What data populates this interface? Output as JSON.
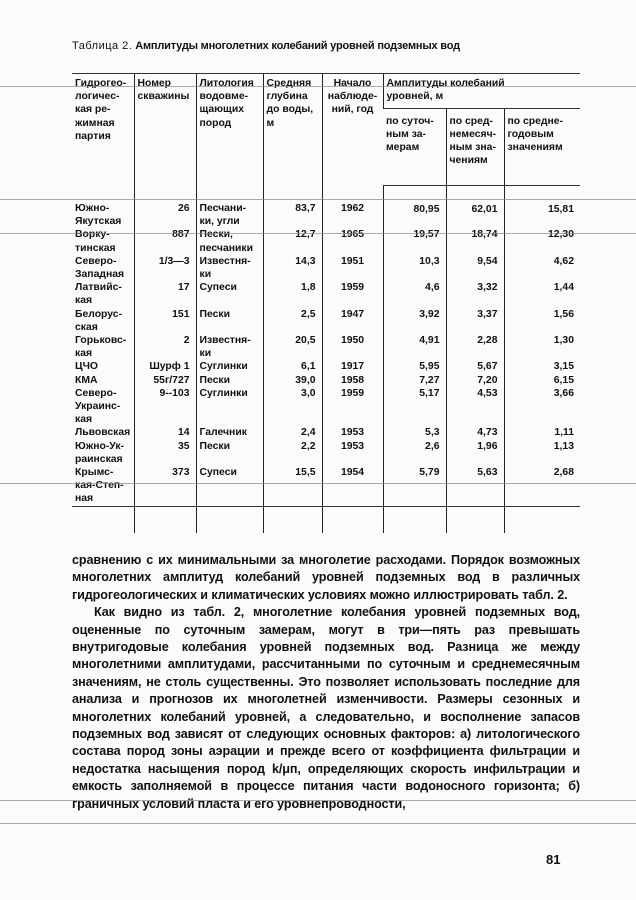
{
  "title": {
    "label": "Таблица 2.",
    "text": "Амплитуды многолетних колебаний уровней подземных вод"
  },
  "table": {
    "headers": {
      "region": "Гидрогео-\nлогичес-\nкая ре-\nжимная\nпартия",
      "well": "Номер\nскважины",
      "lithology": "Литология\nводовме-\nщающих\nпород",
      "depth": "Средняя\nглубина\nдо воды,\n м",
      "start": "Начало\nнаблюде-\nний, год",
      "amplitudes": "Амплитуды колебаний\nуровней, м",
      "daily": "по суточ-\nным за-\nмерам",
      "monthly": "по сред-\nнемесяч-\nным зна-\nчениям",
      "annual": "по средне-\nгодовым\nзначениям"
    },
    "rows": [
      {
        "region": "Южно-\nЯкутская",
        "well": "26",
        "lithology": "Песчани-\nки, угли",
        "depth": "83,7",
        "start": "1962",
        "daily": "80,95",
        "monthly": "62,01",
        "annual": "15,81"
      },
      {
        "region": "Ворку-\nтинская",
        "well": "887",
        "lithology": "Пески,\nпесчаники",
        "depth": "12,7",
        "start": "1965",
        "daily": "19,57",
        "monthly": "18,74",
        "annual": "12,30"
      },
      {
        "region": "Северо-\nЗападная",
        "well": "1/3—3",
        "lithology": "Известня-\nки",
        "depth": "14,3",
        "start": "1951",
        "daily": "10,3",
        "monthly": "9,54",
        "annual": "4,62"
      },
      {
        "region": "Латвийс-\nкая",
        "well": "17",
        "lithology": "Супеси",
        "depth": "1,8",
        "start": "1959",
        "daily": "4,6",
        "monthly": "3,32",
        "annual": "1,44"
      },
      {
        "region": "Белорус-\nская",
        "well": "151",
        "lithology": "Пески",
        "depth": "2,5",
        "start": "1947",
        "daily": "3,92",
        "monthly": "3,37",
        "annual": "1,56"
      },
      {
        "region": "Горьковс-\nкая",
        "well": "2",
        "lithology": "Известня-\nки",
        "depth": "20,5",
        "start": "1950",
        "daily": "4,91",
        "monthly": "2,28",
        "annual": "1,30"
      },
      {
        "region": "ЦЧО",
        "well": "Шурф 1",
        "lithology": "Суглинки",
        "depth": "6,1",
        "start": "1917",
        "daily": "5,95",
        "monthly": "5,67",
        "annual": "3,15"
      },
      {
        "region": "КМА",
        "well": "55г/727",
        "lithology": "Пески",
        "depth": "39,0",
        "start": "1958",
        "daily": "7,27",
        "monthly": "7,20",
        "annual": "6,15"
      },
      {
        "region": "Северо-\nУкраинс-\nкая",
        "well": "9--103",
        "lithology": "Суглинки",
        "depth": "3,0",
        "start": "1959",
        "daily": "5,17",
        "monthly": "4,53",
        "annual": "3,66"
      },
      {
        "region": "Львовская",
        "well": "14",
        "lithology": "Галечник",
        "depth": "2,4",
        "start": "1953",
        "daily": "5,3",
        "monthly": "4,73",
        "annual": "1,11"
      },
      {
        "region": "Южно-Ук-\nраинская",
        "well": "35",
        "lithology": "Пески",
        "depth": "2,2",
        "start": "1953",
        "daily": "2,6",
        "monthly": "1,96",
        "annual": "1,13"
      },
      {
        "region": "Крымс-\nкая-Степ-\nная",
        "well": "373",
        "lithology": "Супеси",
        "depth": "15,5",
        "start": "1954",
        "daily": "5,79",
        "monthly": "5,63",
        "annual": "2,68"
      }
    ]
  },
  "body": {
    "p1": "сравнению с их минимальными за многолетие расходами. Порядок возможных многолетних амплитуд колебаний уровней подземных вод в различных гидрогеологических и климатических условиях можно иллюстрировать табл. 2.",
    "p2": "Как видно из табл. 2, многолетние колебания уровней подземных вод, оцененные по суточным замерам, могут в три—пять раз превышать внутригодовые колебания уровней подземных вод. Разница же между многолетними амплитудами, рассчитанными по суточным и среднемесячным значениям, не столь существенны. Это позволяет использовать последние для анализа и прогнозов их многолетней изменчивости. Размеры сезонных и многолетних колебаний уровней, а следовательно, и восполнение запасов подземных вод зависят от следующих основных факторов: а) литологического состава пород зоны аэрации и прежде всего от коэффициента фильтрации и недостатка насыщения пород k/μп, определяющих скорость инфильтрации и емкость заполняемой в процессе питания части водоносного горизонта; б) граничных условий пласта и его уровнепроводности,"
  },
  "page_number": "81"
}
